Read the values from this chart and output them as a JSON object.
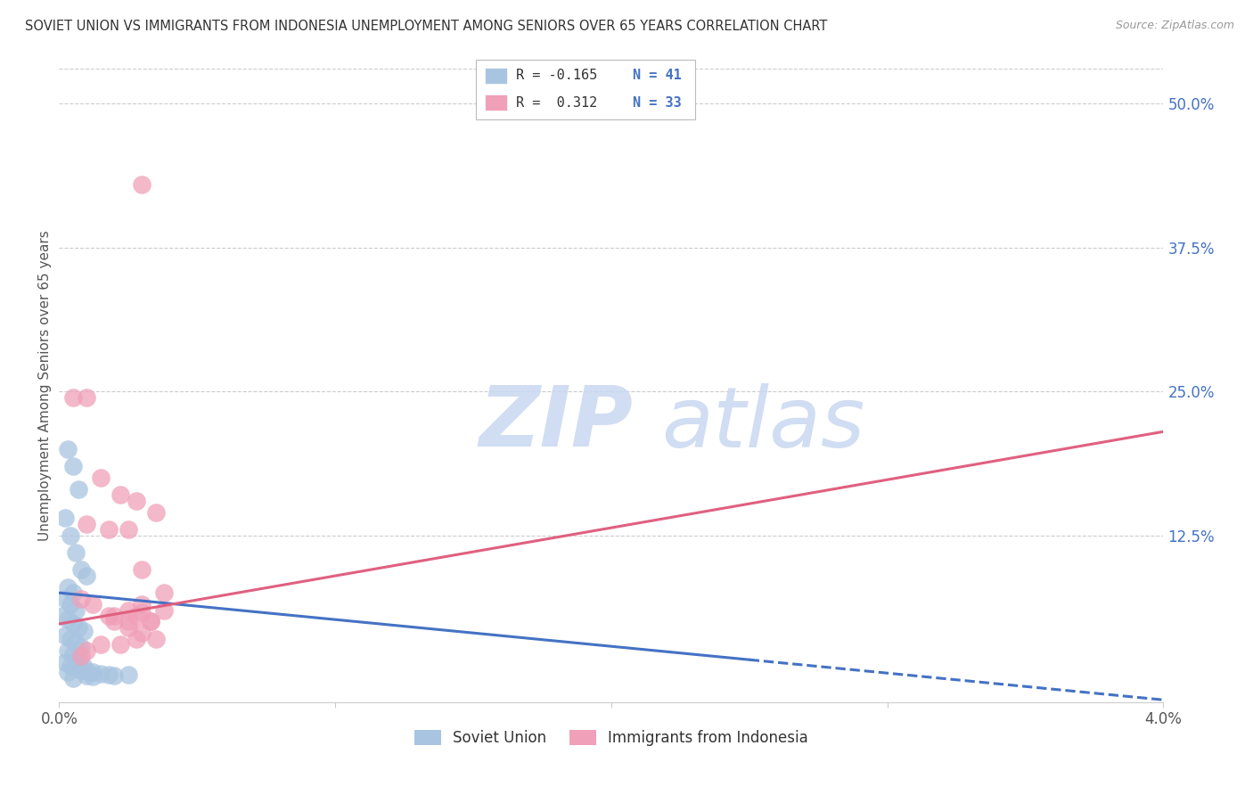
{
  "title": "SOVIET UNION VS IMMIGRANTS FROM INDONESIA UNEMPLOYMENT AMONG SENIORS OVER 65 YEARS CORRELATION CHART",
  "source": "Source: ZipAtlas.com",
  "ylabel": "Unemployment Among Seniors over 65 years",
  "y_tick_labels": [
    "12.5%",
    "25.0%",
    "37.5%",
    "50.0%"
  ],
  "y_tick_values": [
    0.125,
    0.25,
    0.375,
    0.5
  ],
  "x_lim": [
    0.0,
    0.04
  ],
  "y_lim": [
    -0.02,
    0.53
  ],
  "x_ticks": [
    0.0,
    0.01,
    0.02,
    0.03,
    0.04
  ],
  "x_tick_labels": [
    "0.0%",
    "",
    "",
    "",
    "4.0%"
  ],
  "legend_bottom": [
    {
      "label": "Soviet Union",
      "color": "#a8c4e0"
    },
    {
      "label": "Immigrants from Indonesia",
      "color": "#f0a0b8"
    }
  ],
  "blue_scatter_x": [
    0.0003,
    0.0005,
    0.0007,
    0.0002,
    0.0004,
    0.0006,
    0.0008,
    0.001,
    0.0003,
    0.0005,
    0.0002,
    0.0004,
    0.0006,
    0.0001,
    0.0003,
    0.0005,
    0.0007,
    0.0009,
    0.0002,
    0.0004,
    0.0006,
    0.0008,
    0.0003,
    0.0005,
    0.0007,
    0.0002,
    0.0004,
    0.0006,
    0.0008,
    0.001,
    0.0012,
    0.0015,
    0.0018,
    0.001,
    0.0012,
    0.002,
    0.0025,
    0.0005,
    0.0003,
    0.0007,
    0.0009
  ],
  "blue_scatter_y": [
    0.2,
    0.185,
    0.165,
    0.14,
    0.125,
    0.11,
    0.095,
    0.09,
    0.08,
    0.075,
    0.07,
    0.065,
    0.06,
    0.055,
    0.052,
    0.048,
    0.045,
    0.042,
    0.038,
    0.035,
    0.032,
    0.028,
    0.025,
    0.022,
    0.018,
    0.015,
    0.012,
    0.01,
    0.008,
    0.007,
    0.006,
    0.005,
    0.004,
    0.003,
    0.002,
    0.003,
    0.004,
    0.001,
    0.006,
    0.009,
    0.011
  ],
  "pink_scatter_x": [
    0.003,
    0.0005,
    0.001,
    0.0015,
    0.0022,
    0.0028,
    0.0035,
    0.001,
    0.0018,
    0.0025,
    0.003,
    0.0038,
    0.0008,
    0.0012,
    0.002,
    0.0028,
    0.0033,
    0.002,
    0.0025,
    0.003,
    0.0035,
    0.0015,
    0.001,
    0.0008,
    0.0018,
    0.0025,
    0.003,
    0.0028,
    0.0022,
    0.0033,
    0.0038,
    0.003,
    0.0025
  ],
  "pink_scatter_y": [
    0.43,
    0.245,
    0.245,
    0.175,
    0.16,
    0.155,
    0.145,
    0.135,
    0.13,
    0.13,
    0.095,
    0.075,
    0.07,
    0.065,
    0.055,
    0.055,
    0.05,
    0.05,
    0.045,
    0.04,
    0.035,
    0.03,
    0.025,
    0.02,
    0.055,
    0.05,
    0.058,
    0.035,
    0.03,
    0.05,
    0.06,
    0.065,
    0.06
  ],
  "blue_line": {
    "x0": 0.0,
    "y0": 0.075,
    "x1": 0.04,
    "y1": -0.018,
    "solid_to": 0.025
  },
  "pink_line": {
    "x0": 0.0,
    "y0": 0.048,
    "x1": 0.04,
    "y1": 0.215
  },
  "blue_color": "#4472c4",
  "blue_scatter_color": "#a8c4e0",
  "pink_line_color": "#e06080",
  "pink_scatter_color": "#f0a0b8",
  "background_color": "#ffffff",
  "grid_color": "#cccccc",
  "title_color": "#333333",
  "source_color": "#999999",
  "right_axis_color": "#4472c4",
  "watermark_zip_color": "#c8d8ec",
  "watermark_atlas_color": "#c8d8ec"
}
